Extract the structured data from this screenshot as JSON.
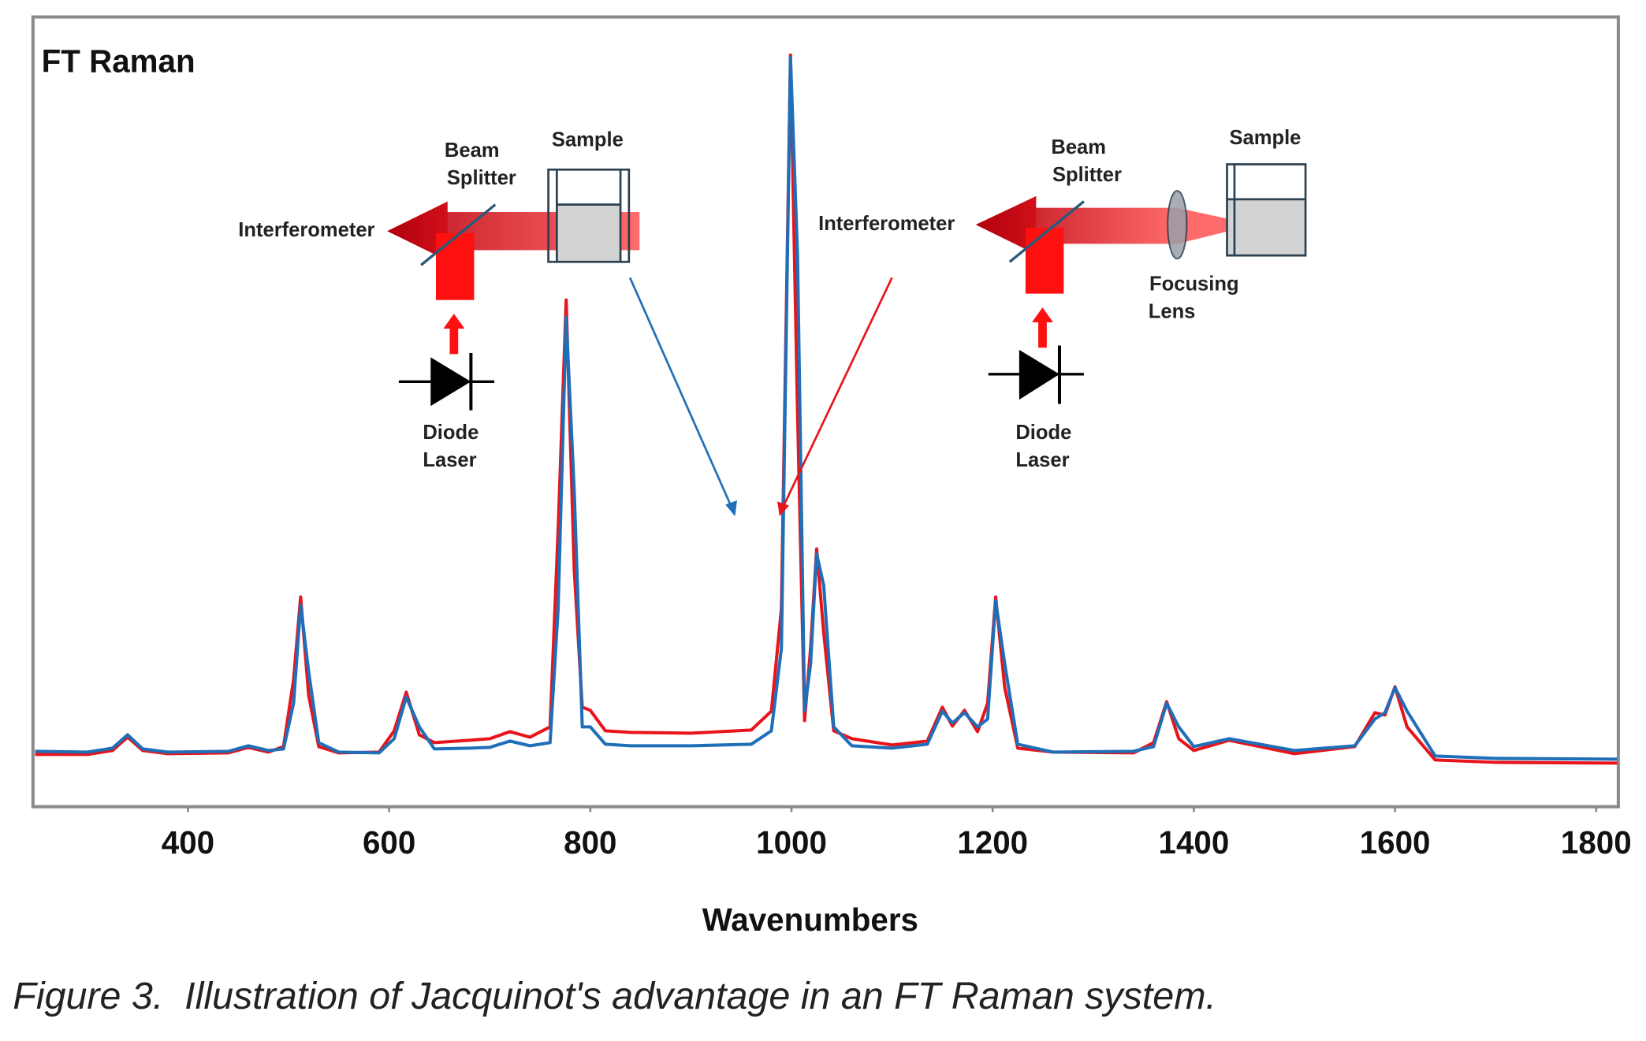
{
  "chart_data": {
    "type": "line",
    "title": "FT Raman",
    "x_label": "Wavenumbers",
    "caption": "Figure 3.  Illustration of Jacquinot's advantage in an FT Raman system.",
    "annotations": [
      "Beam",
      "Splitter",
      "Sample",
      "Interferometer",
      "Diode",
      "Laser",
      "Beam",
      "Splitter",
      "Sample",
      "Interferometer",
      "Focusing",
      "Lens",
      "Diode",
      "Laser"
    ],
    "xlim": [
      248,
      1821
    ],
    "xticks": [
      400,
      600,
      800,
      1000,
      1200,
      1400,
      1600,
      1800
    ],
    "ylim": [
      0,
      100
    ],
    "x": [
      248,
      300,
      325,
      340,
      355,
      380,
      440,
      460,
      480,
      495,
      505,
      512,
      520,
      530,
      550,
      590,
      605,
      617,
      630,
      645,
      680,
      700,
      720,
      740,
      760,
      768,
      776,
      784,
      792,
      800,
      815,
      840,
      900,
      960,
      980,
      990,
      999,
      1006,
      1013,
      1019,
      1025,
      1032,
      1042,
      1060,
      1100,
      1135,
      1150,
      1160,
      1172,
      1185,
      1195,
      1203,
      1212,
      1225,
      1260,
      1340,
      1360,
      1373,
      1385,
      1400,
      1435,
      1500,
      1560,
      1580,
      1590,
      1600,
      1612,
      1640,
      1700,
      1821
    ],
    "series": [
      {
        "color": "#e8141c",
        "values": [
          6.5,
          6.5,
          7.0,
          8.7,
          7.0,
          6.6,
          6.7,
          7.4,
          6.8,
          7.5,
          16,
          26.5,
          14,
          7.5,
          6.7,
          6.8,
          9.5,
          14.4,
          9,
          8.0,
          8.3,
          8.5,
          9.4,
          8.7,
          10,
          35,
          64.2,
          30,
          12.5,
          12.1,
          9.5,
          9.3,
          9.2,
          9.6,
          12,
          25,
          95.3,
          50,
          10.8,
          20,
          32.6,
          22,
          9.5,
          8.5,
          7.7,
          8.2,
          12.5,
          10.1,
          12.1,
          9.4,
          13,
          26.5,
          15,
          7.3,
          6.8,
          6.7,
          8,
          13.2,
          8.5,
          7.0,
          8.3,
          6.6,
          7.5,
          11.8,
          11.5,
          15.1,
          10,
          5.8,
          5.5,
          5.4
        ]
      },
      {
        "color": "#1f6fb8",
        "values": [
          6.9,
          6.8,
          7.3,
          9.0,
          7.2,
          6.8,
          6.9,
          7.6,
          7.0,
          7.2,
          13,
          25.5,
          17,
          8,
          6.8,
          6.7,
          8.5,
          13.8,
          10,
          7.2,
          7.3,
          7.4,
          8.2,
          7.6,
          8.0,
          25,
          62,
          40,
          10,
          10.0,
          7.8,
          7.6,
          7.6,
          7.8,
          9.5,
          20,
          95,
          70,
          12,
          18,
          32,
          28,
          10,
          7.6,
          7.3,
          7.8,
          12.0,
          10.5,
          11.8,
          10,
          11,
          26.0,
          18,
          7.8,
          6.8,
          6.9,
          7.5,
          13.0,
          10,
          7.5,
          8.5,
          7.0,
          7.6,
          11.0,
          11.8,
          15.0,
          12,
          6.3,
          6.0,
          5.9
        ]
      }
    ]
  }
}
